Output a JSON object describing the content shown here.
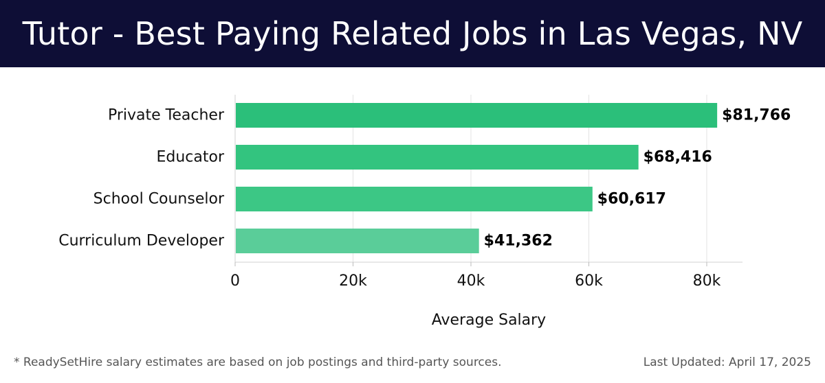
{
  "header": {
    "title": "Tutor - Best Paying Related Jobs in Las Vegas, NV"
  },
  "chart_data": {
    "type": "bar",
    "orientation": "horizontal",
    "categories": [
      "Private Teacher",
      "Educator",
      "School Counselor",
      "Curriculum Developer"
    ],
    "values": [
      81766,
      68416,
      60617,
      41362
    ],
    "value_labels": [
      "$81,766",
      "$68,416",
      "$60,617",
      "$41,362"
    ],
    "bar_colors": [
      "#2bbf7a",
      "#33c47f",
      "#3cc785",
      "#5acd99"
    ],
    "xlabel": "Average Salary",
    "ylabel": "",
    "xlim": [
      0,
      86000
    ],
    "xticks": [
      0,
      20000,
      40000,
      60000,
      80000
    ],
    "xtick_labels": [
      "0",
      "20k",
      "40k",
      "60k",
      "80k"
    ],
    "grid": true
  },
  "footer": {
    "note": "* ReadySetHire salary estimates are based on job postings and third-party sources.",
    "updated": "Last Updated: April 17, 2025"
  }
}
